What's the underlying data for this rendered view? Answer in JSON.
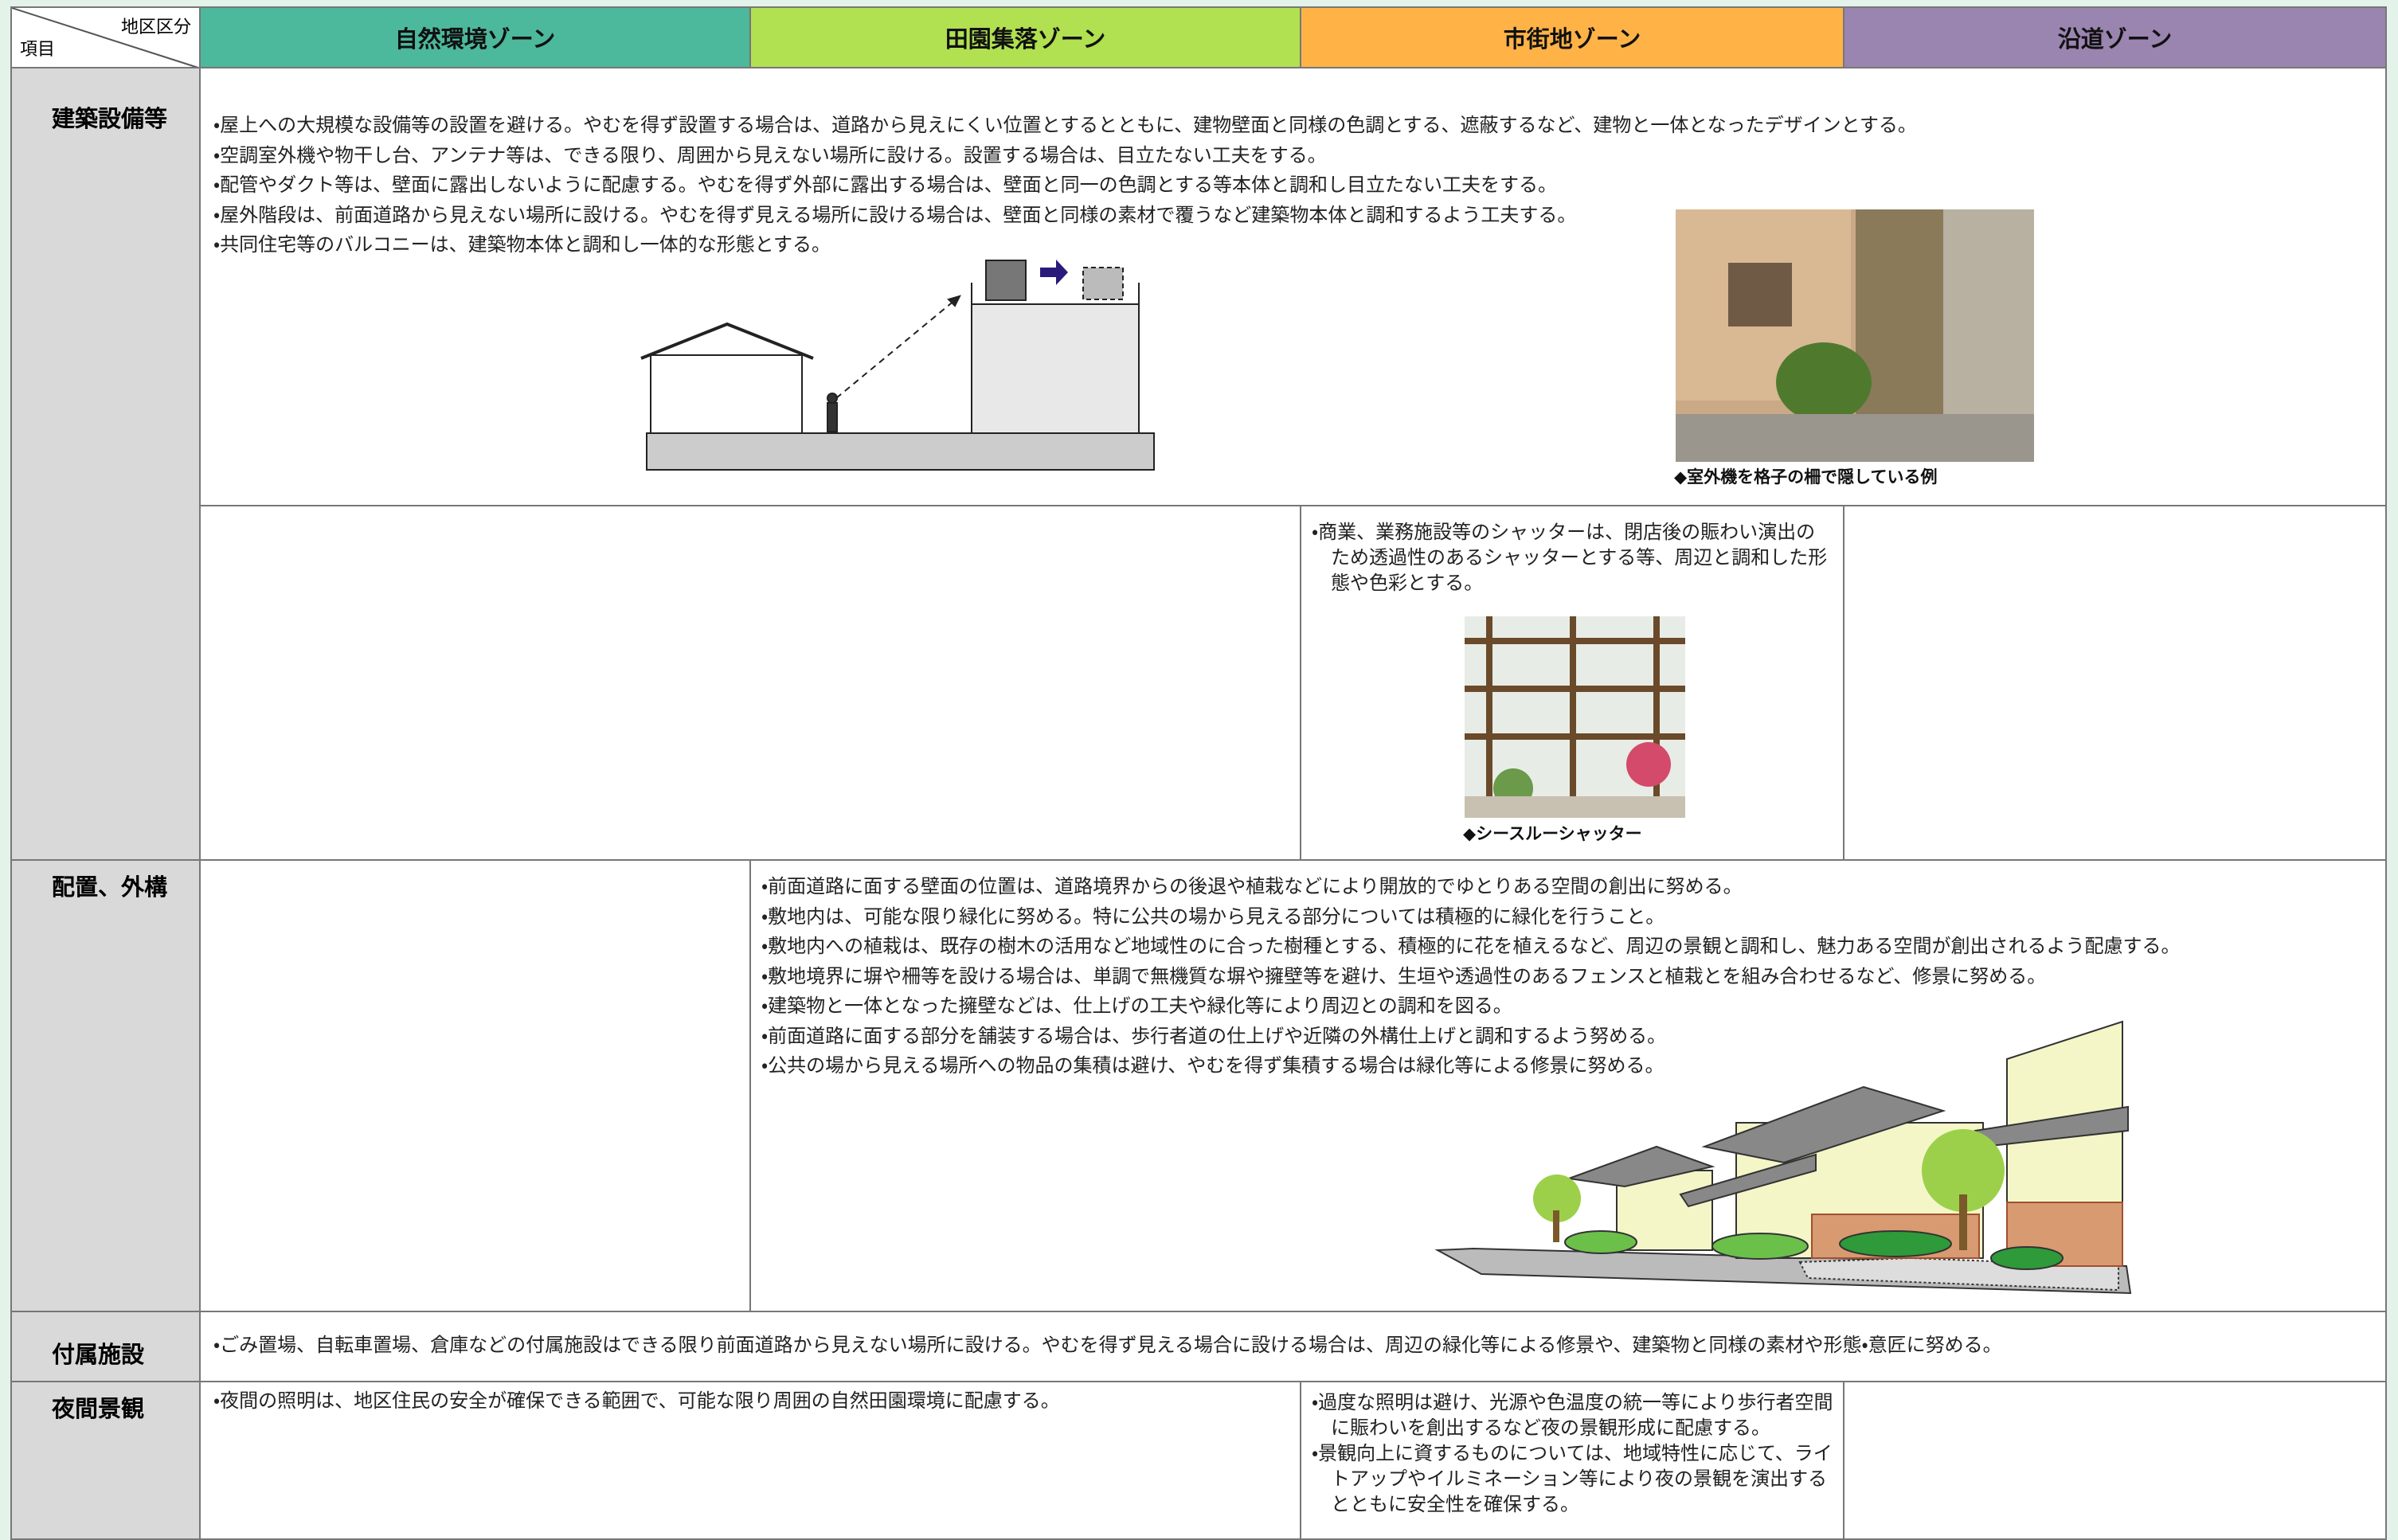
{
  "header": {
    "corner_top": "地区区分",
    "corner_bottom": "項目",
    "zones": [
      "自然環境ゾーン",
      "田園集落ゾーン",
      "市街地ゾーン",
      "沿道ゾーン"
    ]
  },
  "rows": [
    {
      "item": "建築設備等",
      "all_zones": [
        "・屋上への大規模な設備等の設置を避ける。やむを得ず設置する場合は、道路から見えにくい位置とするとともに、建物壁面と同様の色調とする、遮蔽するなど、建物と一体となったデザインとする。",
        "・空調室外機や物干し台、アンテナ等は、できる限り、周囲から見えない場所に設ける。設置する場合は、目立たない工夫をする。",
        "・配管やダクト等は、壁面に露出しないように配慮する。やむを得ず外部に露出する場合は、壁面と同一の色調とする等本体と調和し目立たない工夫をする。",
        "・屋外階段は、前面道路から見えない場所に設ける。やむを得ず見える場所に設ける場合は、壁面と同様の素材で覆うなど建築物本体と調和するよう工夫する。",
        "・共同住宅等のバルコニーは、建築物本体と調和し一体的な形態とする。"
      ],
      "photo_caption": "◆室外機を格子の柵で隠している例",
      "urban": [
        "・商業、業務施設等のシャッターは、閉店後の賑わい演出のため透過性のあるシャッターとする等、周辺と調和した形態や色彩とする。"
      ],
      "urban_caption": "◆シースルーシャッター"
    },
    {
      "item": "配置、外構",
      "rural_to_roadside": [
        "・前面道路に面する壁面の位置は、道路境界からの後退や植栽などにより開放的でゆとりある空間の創出に努める。",
        "・敷地内は、可能な限り緑化に努める。特に公共の場から見える部分については積極的に緑化を行うこと。",
        "・敷地内への植栽は、既存の樹木の活用など地域性のに合った樹種とする、積極的に花を植えるなど、周辺の景観と調和し、魅力ある空間が創出されるよう配慮する。",
        "・敷地境界に塀や柵等を設ける場合は、単調で無機質な塀や擁壁等を避け、生垣や透過性のあるフェンスと植栽とを組み合わせるなど、修景に努める。",
        "・建築物と一体となった擁壁などは、仕上げの工夫や緑化等により周辺との調和を図る。",
        "・前面道路に面する部分を舗装する場合は、歩行者道の仕上げや近隣の外構仕上げと調和するよう努める。",
        "・公共の場から見える場所への物品の集積は避け、やむを得ず集積する場合は緑化等による修景に努める。"
      ]
    },
    {
      "item": "付属施設",
      "all_zones": [
        "・ごみ置場、自転車置場、倉庫などの付属施設はできる限り前面道路から見えない場所に設ける。やむを得ず見える場合に設ける場合は、周辺の緑化等による修景や、建築物と同様の素材や形態・意匠に努める。"
      ]
    },
    {
      "item": "夜間景観",
      "nature_rural": [
        "・夜間の照明は、地区住民の安全が確保できる範囲で、可能な限り周囲の自然田園環境に配慮する。"
      ],
      "urban": [
        "・過度な照明は避け、光源や色温度の統一等により歩行者空間に賑わいを創出するなど夜の景観形成に配慮する。",
        "・景観向上に資するものについては、地域特性に応じて、ライトアップやイルミネーション等により夜の景観を演出するとともに安全性を確保する。"
      ]
    }
  ]
}
